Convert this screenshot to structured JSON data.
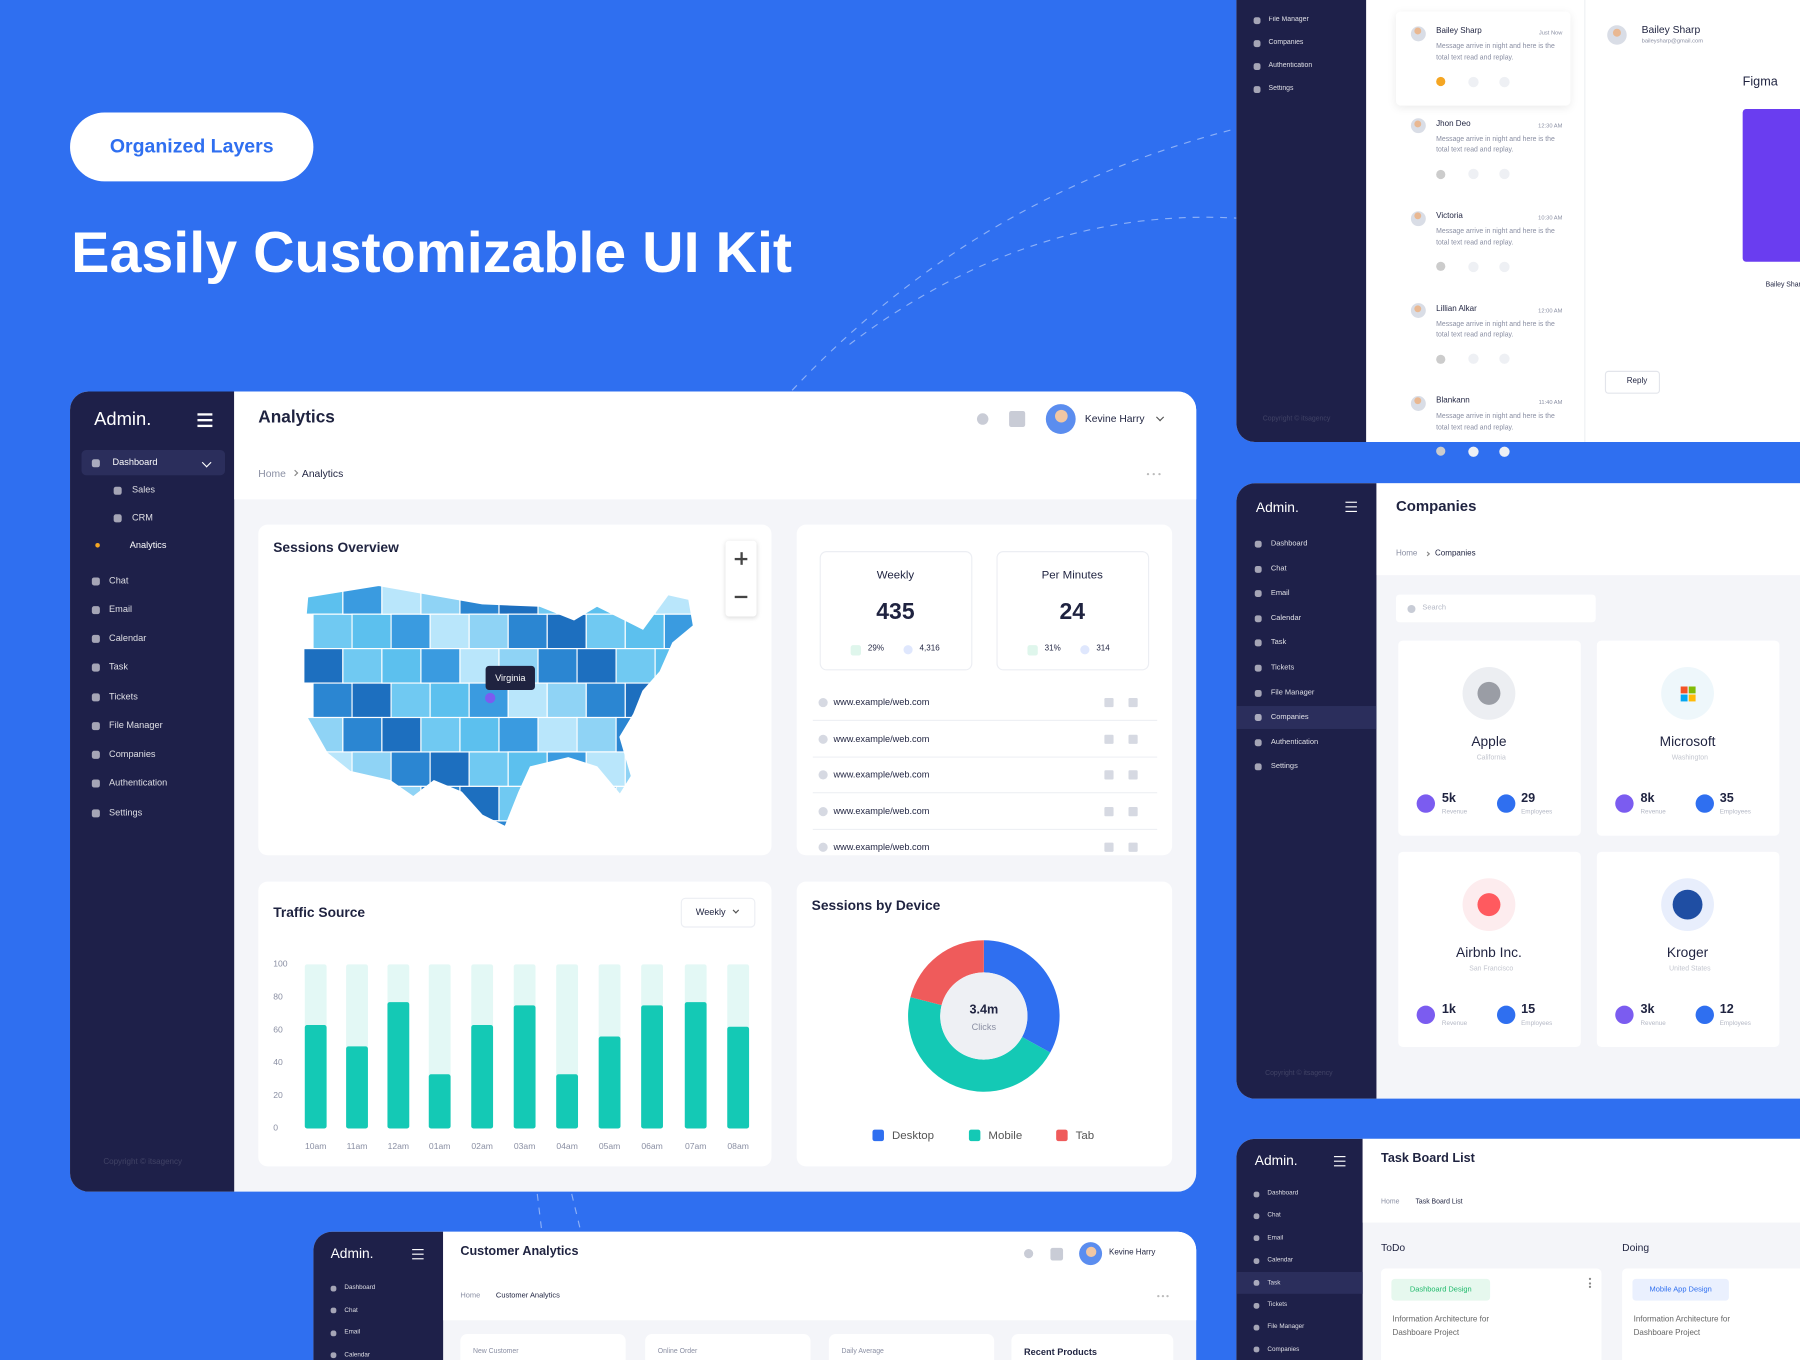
{
  "hero": {
    "badge": "Organized Layers",
    "title": "Easily Customizable UI Kit"
  },
  "analytics": {
    "brand": "Admin.",
    "page_title": "Analytics",
    "user": "Kevine Harry",
    "breadcrumb": [
      "Home",
      "Analytics"
    ],
    "menu": [
      "Dashboard",
      "Sales",
      "CRM",
      "Analytics",
      "Chat",
      "Email",
      "Calendar",
      "Task",
      "Tickets",
      "File Manager",
      "Companies",
      "Authentication",
      "Settings"
    ],
    "copyright": "Copyright © itsagency",
    "sessions_overview": {
      "title": "Sessions Overview",
      "tooltip": "Virginia"
    },
    "stats": [
      {
        "label": "Weekly",
        "value": 435,
        "change": "29%",
        "total": "4,316"
      },
      {
        "label": "Per Minutes",
        "value": 24,
        "change": "31%",
        "total": "314"
      }
    ],
    "links": [
      "www.example/web.com",
      "www.example/web.com",
      "www.example/web.com",
      "www.example/web.com",
      "www.example/web.com"
    ]
  },
  "chart_data": [
    {
      "type": "bar",
      "title": "Traffic Source",
      "filter": "Weekly",
      "categories": [
        "10am",
        "11am",
        "12am",
        "01am",
        "02am",
        "03am",
        "04am",
        "05am",
        "06am",
        "07am",
        "08am"
      ],
      "values": [
        63,
        50,
        77,
        33,
        63,
        75,
        33,
        56,
        75,
        77,
        62
      ],
      "color": "#14c9b5",
      "track_color": "#e3f8f5",
      "ylim": [
        0,
        100
      ],
      "yticks": [
        0,
        20,
        40,
        60,
        80,
        100
      ]
    },
    {
      "type": "pie",
      "title": "Sessions by Device",
      "center_value": "3.4m",
      "center_label": "Clicks",
      "categories": [
        "Desktop",
        "Mobile",
        "Tab"
      ],
      "values": [
        33,
        46,
        21
      ],
      "colors": [
        "#2f6ff0",
        "#14c9b5",
        "#ef5b5b"
      ]
    }
  ],
  "mail": {
    "menu": [
      "File Manager",
      "Companies",
      "Authentication",
      "Settings"
    ],
    "copyright": "Copyright © itsagency",
    "messages": [
      {
        "name": "Bailey Sharp",
        "time": "Just Now",
        "text": "Message arrive in night and here is the total text read and replay."
      },
      {
        "name": "Jhon Deo",
        "time": "12:30 AM",
        "text": "Message arrive in night and here is the total text read and replay."
      },
      {
        "name": "Victoria",
        "time": "10:30 AM",
        "text": "Message arrive in night and here is the total text read and replay."
      },
      {
        "name": "Lillian Alkar",
        "time": "12:00 AM",
        "text": "Message arrive in night and here is the total text read and replay."
      },
      {
        "name": "Blankann",
        "time": "11:40 AM",
        "text": "Message arrive in night and here is the total text read and replay."
      }
    ],
    "detail": {
      "name": "Bailey Sharp",
      "email": "baileysharp@gmail.com",
      "file": "Figma",
      "caption": "Bailey Sharp",
      "reply": "Reply"
    }
  },
  "companies": {
    "brand": "Admin.",
    "menu": [
      "Dashboard",
      "Chat",
      "Email",
      "Calendar",
      "Task",
      "Tickets",
      "File Manager",
      "Companies",
      "Authentication",
      "Settings"
    ],
    "copyright": "Copyright © itsagency",
    "page_title": "Companies",
    "breadcrumb": [
      "Home",
      "Companies"
    ],
    "search": "Search",
    "revenue_label": "Revenue",
    "employees_label": "Employees",
    "items": [
      {
        "name": "Apple",
        "location": "California",
        "revenue": "5k",
        "employees": "29"
      },
      {
        "name": "Microsoft",
        "location": "Washington",
        "revenue": "8k",
        "employees": "35"
      },
      {
        "name": "Airbnb Inc.",
        "location": "San Francisco",
        "revenue": "1k",
        "employees": "15"
      },
      {
        "name": "Kroger",
        "location": "United States",
        "revenue": "3k",
        "employees": "12"
      }
    ]
  },
  "task_board": {
    "brand": "Admin.",
    "menu": [
      "Dashboard",
      "Chat",
      "Email",
      "Calendar",
      "Task",
      "Tickets",
      "File Manager",
      "Companies"
    ],
    "page_title": "Task Board List",
    "breadcrumb": [
      "Home",
      "Task Board List"
    ],
    "columns": [
      {
        "title": "ToDo",
        "tag": "Dashboard Design",
        "text": "Information Architecture for Dashboare Project"
      },
      {
        "title": "Doing",
        "tag": "Mobile App Design",
        "text": "Information Architecture for Dashboare Project"
      }
    ]
  },
  "customer_analytics": {
    "brand": "Admin.",
    "menu": [
      "Dashboard",
      "Chat",
      "Email",
      "Calendar"
    ],
    "page_title": "Customer Analytics",
    "user": "Kevine Harry",
    "breadcrumb": [
      "Home",
      "Customer Analytics"
    ],
    "cards": [
      "New Customer",
      "Online Order",
      "Daily Average",
      "Recent Products"
    ]
  }
}
